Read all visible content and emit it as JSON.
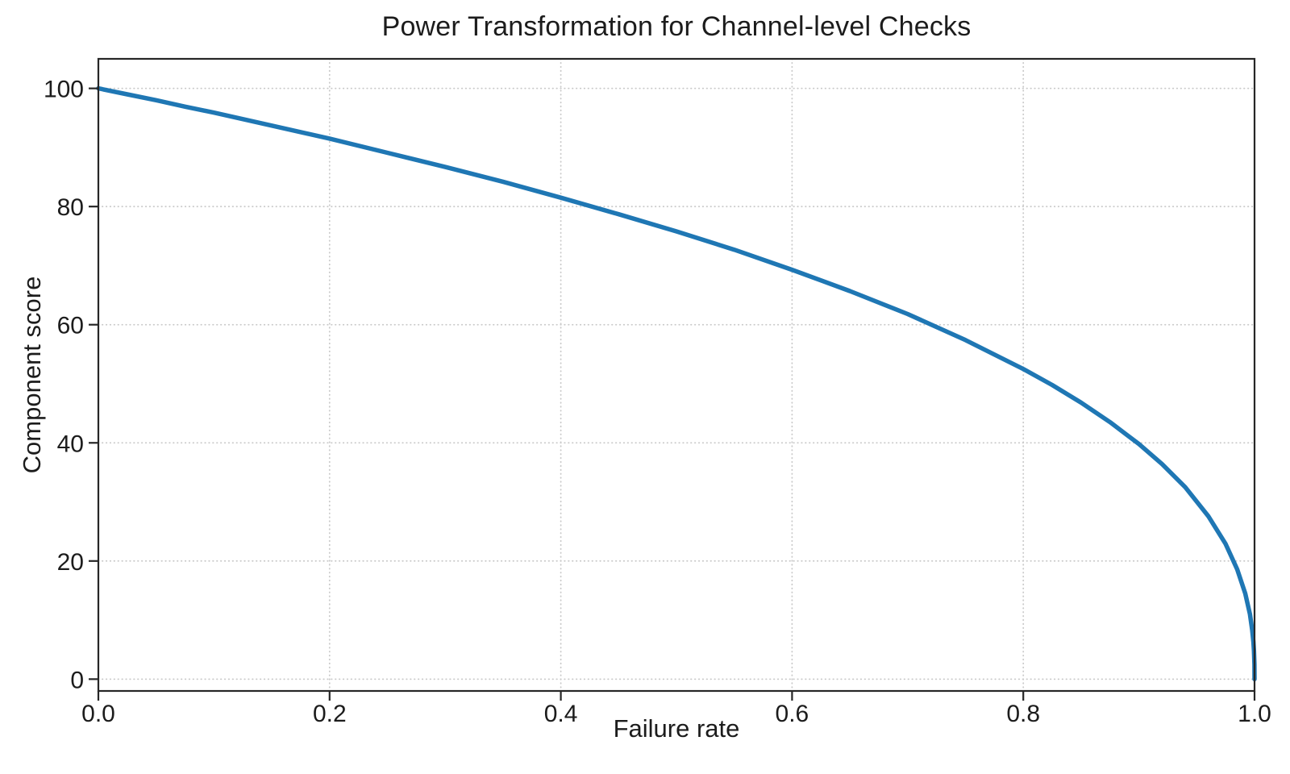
{
  "figure": {
    "title": "Power Transformation for Channel-level Checks",
    "x_axis_label": "Failure rate",
    "y_axis_label": "Component score"
  },
  "colors": {
    "line": "#1f77b4",
    "text": "#1c1c1c",
    "grid": "#c9c9c9",
    "spine": "#262626",
    "background": "#ffffff"
  },
  "chart_data": {
    "type": "line",
    "title": "Power Transformation for Channel-level Checks",
    "xlabel": "Failure rate",
    "ylabel": "Component score",
    "xlim": [
      0,
      1
    ],
    "ylim": [
      -2,
      105
    ],
    "x_ticks": [
      0,
      0.2,
      0.4,
      0.6,
      0.8,
      1.0
    ],
    "x_tick_labels": [
      "0.0",
      "0.2",
      "0.4",
      "0.6",
      "0.8",
      "1.0"
    ],
    "y_ticks": [
      0,
      20,
      40,
      60,
      80,
      100
    ],
    "y_tick_labels": [
      "0",
      "20",
      "40",
      "60",
      "80",
      "100"
    ],
    "grid": true,
    "grid_style": "dotted",
    "legend_position": "none",
    "line_color": "#1f77b4",
    "line_width": 5.5,
    "power_exponent": 0.4,
    "series": [
      {
        "name": "component-score-curve",
        "x": [
          0,
          0.025,
          0.05,
          0.075,
          0.1,
          0.15,
          0.2,
          0.25,
          0.3,
          0.35,
          0.4,
          0.45,
          0.5,
          0.55,
          0.6,
          0.65,
          0.7,
          0.75,
          0.8,
          0.825,
          0.85,
          0.875,
          0.9,
          0.92,
          0.94,
          0.96,
          0.975,
          0.985,
          0.992,
          0.996,
          0.998,
          0.999,
          0.9995,
          0.9999,
          1.0
        ],
        "y": [
          100,
          99.0,
          98.0,
          96.9,
          95.9,
          93.7,
          91.5,
          89.1,
          86.7,
          84.2,
          81.5,
          78.7,
          75.8,
          72.7,
          69.3,
          65.7,
          61.8,
          57.4,
          52.5,
          49.8,
          46.8,
          43.5,
          39.8,
          36.4,
          32.5,
          27.6,
          22.9,
          18.6,
          14.5,
          11.0,
          8.3,
          6.3,
          4.8,
          2.5,
          0
        ]
      }
    ]
  }
}
